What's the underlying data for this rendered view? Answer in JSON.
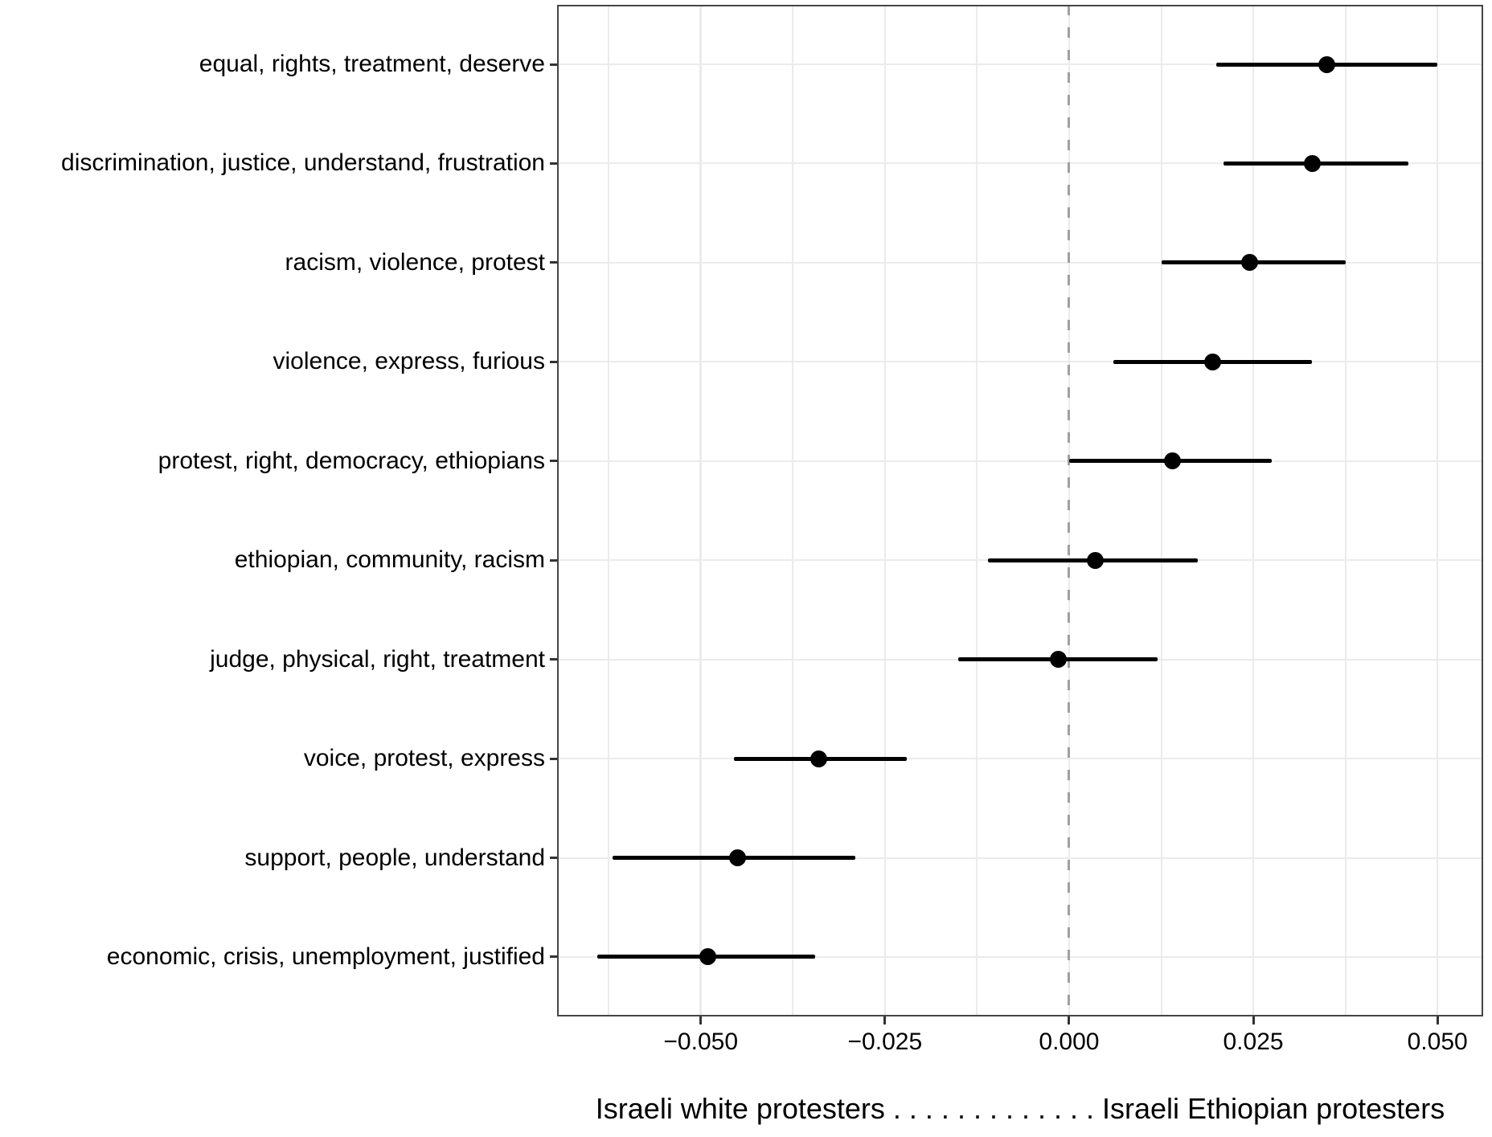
{
  "chart_data": {
    "type": "scatter",
    "subtype": "dot-whisker-coefficient-plot",
    "orientation": "horizontal",
    "title": "",
    "xlabel": "Israeli white protesters . . . . . . . . . . . . . Israeli Ethiopian protesters",
    "ylabel": "",
    "xlim": [
      -0.0695,
      0.0562
    ],
    "x_ticks": [
      -0.05,
      -0.025,
      0.0,
      0.025,
      0.05
    ],
    "x_tick_labels": [
      "−0.050",
      "−0.025",
      "0.000",
      "0.025",
      "0.050"
    ],
    "x_minor_ticks": [
      -0.0625,
      -0.0375,
      -0.0125,
      0.0125,
      0.0375
    ],
    "zero_reference_line": 0,
    "grid": "on",
    "legend": "none",
    "series": [
      {
        "topic": "equal, rights, treatment, deserve",
        "estimate": 0.035,
        "ci_low": 0.02,
        "ci_high": 0.05
      },
      {
        "topic": "discrimination, justice, understand, frustration",
        "estimate": 0.033,
        "ci_low": 0.021,
        "ci_high": 0.046
      },
      {
        "topic": "racism, violence, protest",
        "estimate": 0.0245,
        "ci_low": 0.0125,
        "ci_high": 0.0375
      },
      {
        "topic": "violence, express, furious",
        "estimate": 0.0195,
        "ci_low": 0.006,
        "ci_high": 0.033
      },
      {
        "topic": "protest, right, democracy, ethiopians",
        "estimate": 0.014,
        "ci_low": 0.0,
        "ci_high": 0.0275
      },
      {
        "topic": "ethiopian, community, racism",
        "estimate": 0.0035,
        "ci_low": -0.011,
        "ci_high": 0.0175
      },
      {
        "topic": "judge, physical, right, treatment",
        "estimate": -0.0015,
        "ci_low": -0.015,
        "ci_high": 0.012
      },
      {
        "topic": "voice, protest, express",
        "estimate": -0.034,
        "ci_low": -0.0455,
        "ci_high": -0.022
      },
      {
        "topic": "support, people, understand",
        "estimate": -0.045,
        "ci_low": -0.062,
        "ci_high": -0.029
      },
      {
        "topic": "economic, crisis, unemployment, justified",
        "estimate": -0.049,
        "ci_low": -0.064,
        "ci_high": -0.0345
      }
    ],
    "colors": {
      "marker": "#000000",
      "ci_line": "#000000",
      "grid": "#ebebeb",
      "zero_line": "#a0a0a0",
      "panel_border": "#454545",
      "axis_tick": "#333333",
      "text": "#000000",
      "background": "#ffffff"
    }
  }
}
